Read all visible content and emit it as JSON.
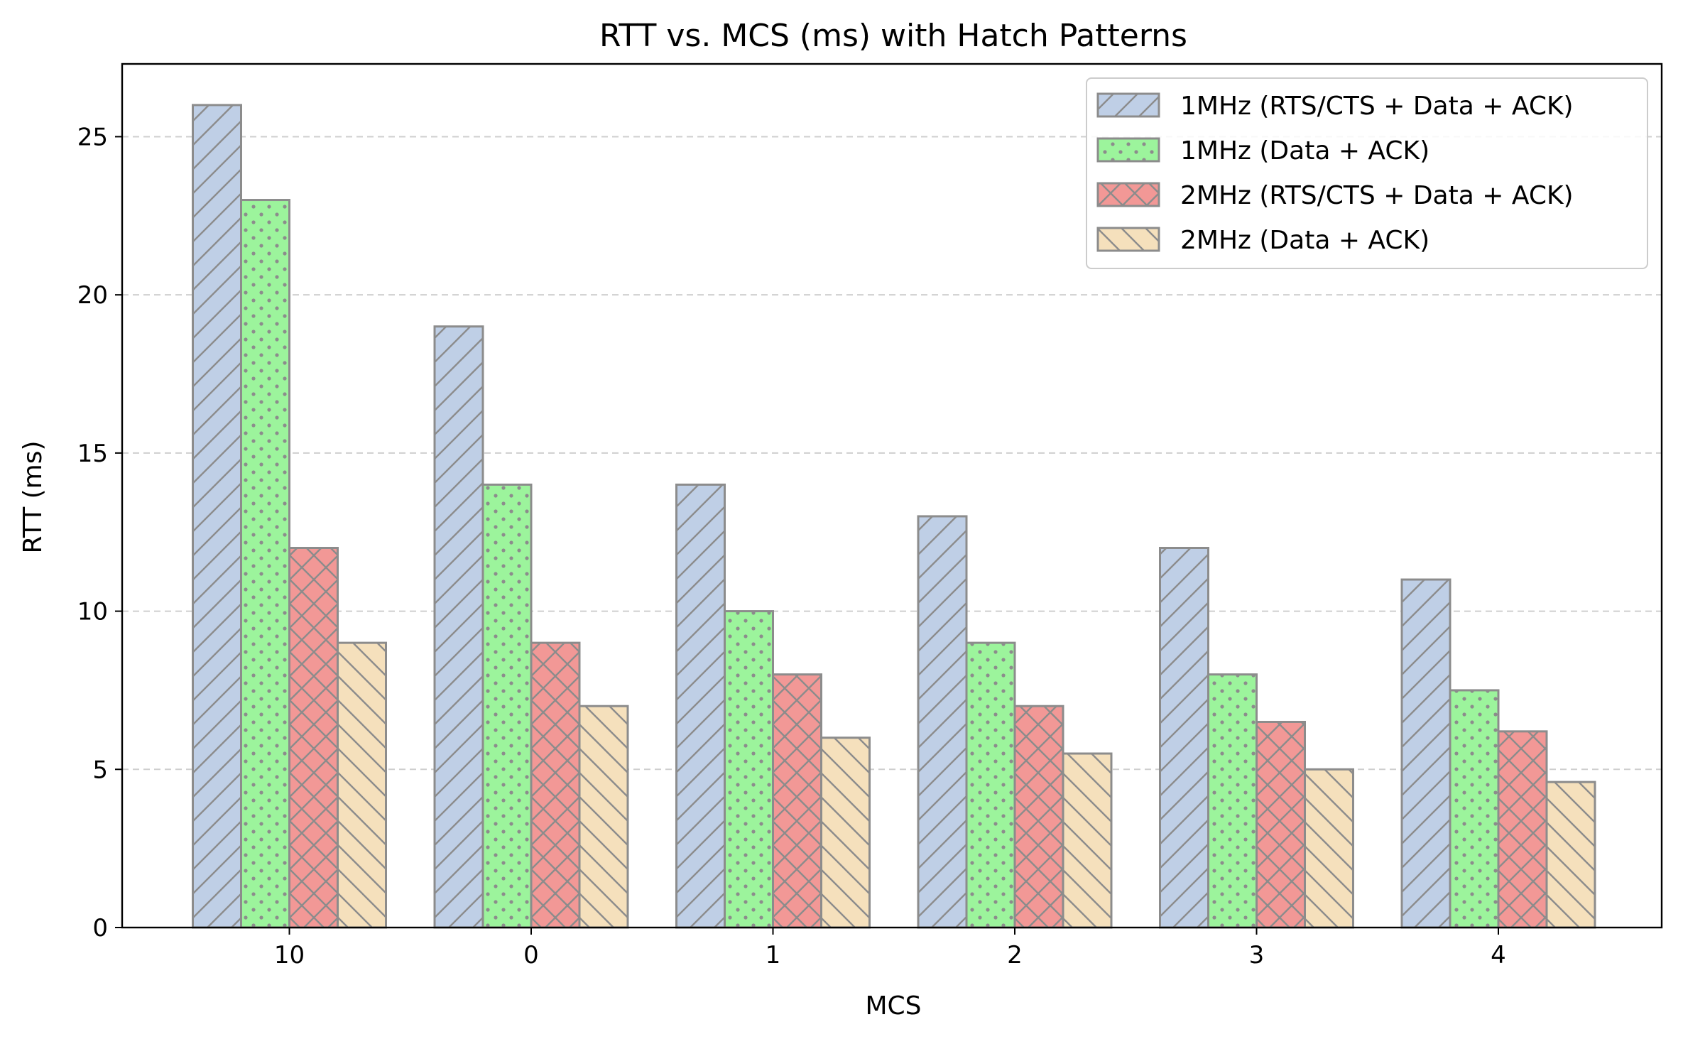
{
  "chart_data": {
    "type": "bar",
    "title": "RTT vs. MCS (ms) with Hatch Patterns",
    "xlabel": "MCS",
    "ylabel": "RTT (ms)",
    "categories": [
      "10",
      "0",
      "1",
      "2",
      "3",
      "4"
    ],
    "ylim": [
      0,
      27.3
    ],
    "yticks": [
      0,
      5,
      10,
      15,
      20,
      25
    ],
    "grid": "y dashed",
    "legend_position": "top-right",
    "series": [
      {
        "name": "1MHz (RTS/CTS + Data + ACK)",
        "values": [
          26,
          19,
          14,
          13,
          12,
          11
        ],
        "color": "#bfcfe6",
        "hatch": "diagonal-forward"
      },
      {
        "name": "1MHz (Data + ACK)",
        "values": [
          23,
          14,
          10,
          9,
          8,
          7.5
        ],
        "color": "#9cf49c",
        "hatch": "dots"
      },
      {
        "name": "2MHz (RTS/CTS + Data + ACK)",
        "values": [
          12,
          9,
          8,
          7,
          6.5,
          6.2
        ],
        "color": "#f29896",
        "hatch": "cross"
      },
      {
        "name": "2MHz (Data + ACK)",
        "values": [
          9,
          7,
          6,
          5.5,
          5,
          4.6
        ],
        "color": "#f5e0bc",
        "hatch": "diagonal-back"
      }
    ],
    "edge_color": "#8c8c8c"
  }
}
